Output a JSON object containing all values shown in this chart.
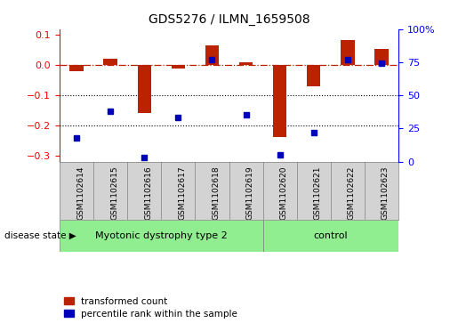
{
  "title": "GDS5276 / ILMN_1659508",
  "samples": [
    "GSM1102614",
    "GSM1102615",
    "GSM1102616",
    "GSM1102617",
    "GSM1102618",
    "GSM1102619",
    "GSM1102620",
    "GSM1102621",
    "GSM1102622",
    "GSM1102623"
  ],
  "red_values": [
    -0.02,
    0.02,
    -0.16,
    -0.01,
    0.065,
    0.01,
    -0.24,
    -0.07,
    0.085,
    0.055
  ],
  "blue_percentile": [
    0.18,
    0.38,
    0.03,
    0.33,
    0.77,
    0.35,
    0.05,
    0.22,
    0.77,
    0.74
  ],
  "groups": [
    {
      "label": "Myotonic dystrophy type 2",
      "start": 0,
      "end": 5
    },
    {
      "label": "control",
      "start": 6,
      "end": 9
    }
  ],
  "ylim_left": [
    -0.32,
    0.12
  ],
  "yticks_left": [
    0.1,
    0.0,
    -0.1,
    -0.2,
    -0.3
  ],
  "yticks_right_labels": [
    "100%",
    "75",
    "50",
    "25",
    "0"
  ],
  "yticks_right_vals": [
    1.0,
    0.75,
    0.5,
    0.25,
    0.0
  ],
  "hline_y": 0.0,
  "dotted_lines": [
    -0.1,
    -0.2
  ],
  "bar_color": "#bb2200",
  "dot_color": "#0000bb",
  "group_color": "#90ee90",
  "label_bg": "#d3d3d3",
  "disease_state_label": "disease state",
  "legend_red": "transformed count",
  "legend_blue": "percentile rank within the sample",
  "bar_width": 0.4
}
